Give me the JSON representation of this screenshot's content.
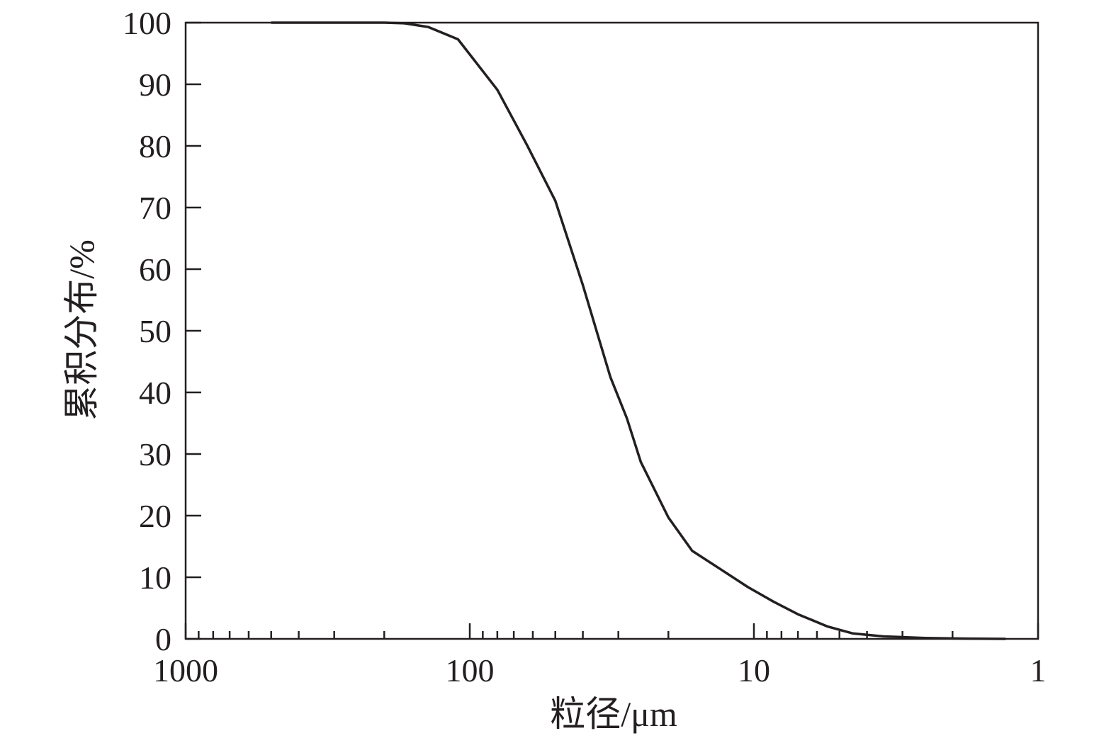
{
  "chart_data": {
    "type": "line",
    "title": "",
    "xlabel": "粒径/μm",
    "ylabel": "累积分布/%",
    "x_scale": "log",
    "x_reversed": true,
    "xlim": [
      1000,
      1
    ],
    "ylim": [
      0,
      100
    ],
    "x_ticks": [
      1000,
      100,
      10,
      1
    ],
    "x_tick_labels": [
      "1000",
      "100",
      "10",
      "1"
    ],
    "y_ticks": [
      0,
      10,
      20,
      30,
      40,
      50,
      60,
      70,
      80,
      90,
      100
    ],
    "y_tick_labels": [
      "0",
      "10",
      "20",
      "30",
      "40",
      "50",
      "60",
      "70",
      "80",
      "90",
      "100"
    ],
    "grid": false,
    "line_color": "#231f20",
    "series": [
      {
        "x": [
          500,
          200,
          170,
          140,
          110,
          80,
          63,
          50,
          40,
          32,
          28,
          25,
          20,
          16.5,
          13.2,
          10.5,
          8.5,
          7.0,
          5.5,
          4.5,
          3.5,
          2.5,
          1.8,
          1.3
        ],
        "y": [
          100,
          100,
          99.9,
          99.3,
          97.3,
          89.1,
          80.2,
          71.1,
          57.4,
          42.5,
          35.8,
          28.7,
          19.7,
          14.3,
          11.4,
          8.4,
          6.0,
          4.0,
          2.0,
          0.9,
          0.4,
          0.15,
          0.05,
          0
        ]
      }
    ]
  }
}
